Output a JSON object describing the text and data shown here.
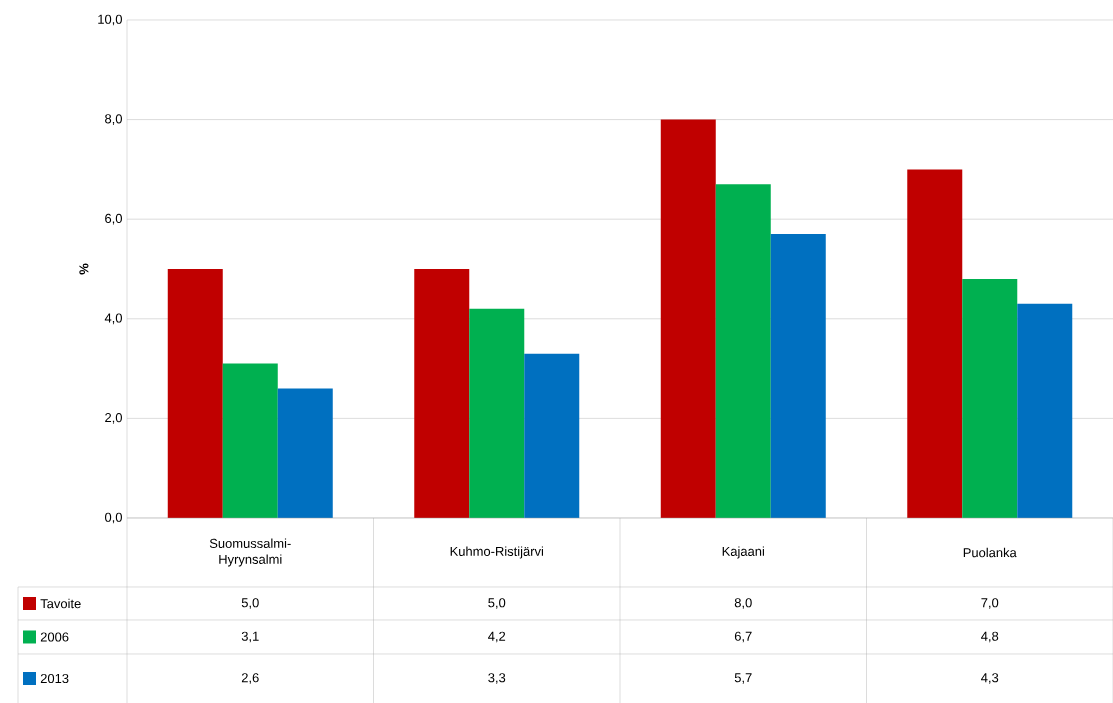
{
  "chart_data": {
    "type": "bar",
    "ylabel": "%",
    "categories": [
      "Suomussalmi-Hyrynsalmi",
      "Kuhmo-Ristijärvi",
      "Kajaani",
      "Puolanka"
    ],
    "series": [
      {
        "name": "Tavoite",
        "color": "#c00000",
        "values": [
          5.0,
          5.0,
          8.0,
          7.0
        ],
        "value_labels": [
          "5,0",
          "5,0",
          "8,0",
          "7,0"
        ]
      },
      {
        "name": "2006",
        "color": "#00b050",
        "values": [
          3.1,
          4.2,
          6.7,
          4.8
        ],
        "value_labels": [
          "3,1",
          "4,2",
          "6,7",
          "4,8"
        ]
      },
      {
        "name": "2013",
        "color": "#0070c0",
        "values": [
          2.6,
          3.3,
          5.7,
          4.3
        ],
        "value_labels": [
          "2,6",
          "3,3",
          "5,7",
          "4,3"
        ]
      }
    ],
    "ylim": [
      0,
      10
    ],
    "yticks": [
      {
        "value": 0,
        "label": "0,0"
      },
      {
        "value": 2,
        "label": "2,0"
      },
      {
        "value": 4,
        "label": "4,0"
      },
      {
        "value": 6,
        "label": "6,0"
      },
      {
        "value": 8,
        "label": "8,0"
      },
      {
        "value": 10,
        "label": "10,0"
      }
    ],
    "grid": "y",
    "legend": "bottom"
  }
}
